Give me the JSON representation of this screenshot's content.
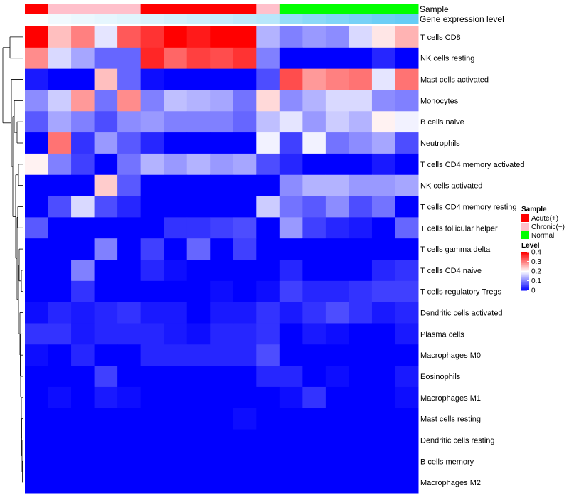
{
  "chart_data": {
    "type": "heatmap",
    "title": "",
    "annotation_tracks": [
      "Sample",
      "Gene expression level"
    ],
    "sample_groups": [
      "Acute",
      "Chronic",
      "Chronic",
      "Chronic",
      "Chronic",
      "Acute",
      "Acute",
      "Acute",
      "Acute",
      "Acute",
      "Chronic",
      "Normal",
      "Normal",
      "Normal",
      "Normal",
      "Normal",
      "Normal"
    ],
    "expression_level": [
      0.02,
      0.08,
      0.12,
      0.15,
      0.18,
      0.22,
      0.26,
      0.3,
      0.34,
      0.38,
      0.42,
      0.62,
      0.68,
      0.74,
      0.8,
      0.86,
      0.9
    ],
    "rows": [
      "T cells CD8",
      "NK cells resting",
      "Mast cells activated",
      "Monocytes",
      "B cells naive",
      "Neutrophils",
      "T cells CD4 memory activated",
      "NK cells activated",
      "T cells CD4 memory resting",
      "T cells follicular helper",
      "T cells gamma delta",
      "T cells CD4 naive",
      "T cells regulatory  Tregs",
      "Dendritic cells activated",
      "Plasma cells",
      "Macrophages M0",
      "Eosinophils",
      "Macrophages M1",
      "Mast cells resting",
      "Dendritic cells resting",
      "B cells memory",
      "Macrophages M2"
    ],
    "values": [
      [
        0.4,
        0.25,
        0.3,
        0.18,
        0.33,
        0.36,
        0.4,
        0.38,
        0.4,
        0.4,
        0.14,
        0.1,
        0.12,
        0.11,
        0.17,
        0.22,
        0.26
      ],
      [
        0.29,
        0.17,
        0.13,
        0.08,
        0.08,
        0.37,
        0.32,
        0.35,
        0.34,
        0.36,
        0.1,
        0.0,
        0.0,
        0.0,
        0.0,
        0.03,
        0.0
      ],
      [
        0.02,
        0.0,
        0.0,
        0.25,
        0.08,
        0.01,
        0.0,
        0.0,
        0.0,
        0.0,
        0.06,
        0.34,
        0.28,
        0.3,
        0.31,
        0.18,
        0.31
      ],
      [
        0.11,
        0.16,
        0.28,
        0.09,
        0.29,
        0.1,
        0.15,
        0.14,
        0.13,
        0.09,
        0.23,
        0.11,
        0.14,
        0.17,
        0.17,
        0.11,
        0.1
      ],
      [
        0.07,
        0.13,
        0.1,
        0.06,
        0.11,
        0.12,
        0.1,
        0.1,
        0.1,
        0.08,
        0.15,
        0.18,
        0.12,
        0.16,
        0.14,
        0.21,
        0.19
      ],
      [
        0.0,
        0.31,
        0.04,
        0.12,
        0.07,
        0.03,
        0.0,
        0.0,
        0.0,
        0.0,
        0.19,
        0.05,
        0.19,
        0.09,
        0.11,
        0.13,
        0.06
      ],
      [
        0.21,
        0.1,
        0.05,
        0.0,
        0.09,
        0.14,
        0.12,
        0.14,
        0.12,
        0.13,
        0.06,
        0.03,
        0.0,
        0.0,
        0.0,
        0.02,
        0.0
      ],
      [
        0.0,
        0.0,
        0.0,
        0.24,
        0.07,
        0.0,
        0.0,
        0.0,
        0.0,
        0.0,
        0.0,
        0.11,
        0.14,
        0.14,
        0.12,
        0.12,
        0.13
      ],
      [
        0.0,
        0.06,
        0.17,
        0.06,
        0.03,
        0.0,
        0.0,
        0.0,
        0.0,
        0.0,
        0.16,
        0.09,
        0.07,
        0.11,
        0.06,
        0.09,
        0.0
      ],
      [
        0.07,
        0.0,
        0.0,
        0.0,
        0.0,
        0.0,
        0.04,
        0.04,
        0.05,
        0.06,
        0.0,
        0.12,
        0.05,
        0.03,
        0.02,
        0.0,
        0.08
      ],
      [
        0.0,
        0.0,
        0.0,
        0.1,
        0.0,
        0.05,
        0.0,
        0.08,
        0.0,
        0.05,
        0.0,
        0.0,
        0.0,
        0.0,
        0.0,
        0.0,
        0.0
      ],
      [
        0.0,
        0.0,
        0.1,
        0.0,
        0.0,
        0.03,
        0.01,
        0.0,
        0.0,
        0.0,
        0.0,
        0.03,
        0.0,
        0.0,
        0.0,
        0.03,
        0.04
      ],
      [
        0.0,
        0.0,
        0.04,
        0.0,
        0.0,
        0.0,
        0.0,
        0.0,
        0.01,
        0.0,
        0.01,
        0.05,
        0.03,
        0.03,
        0.04,
        0.05,
        0.05
      ],
      [
        0.01,
        0.03,
        0.02,
        0.03,
        0.04,
        0.02,
        0.02,
        0.0,
        0.02,
        0.02,
        0.04,
        0.02,
        0.04,
        0.06,
        0.04,
        0.02,
        0.03
      ],
      [
        0.04,
        0.04,
        0.02,
        0.03,
        0.03,
        0.03,
        0.02,
        0.01,
        0.03,
        0.03,
        0.04,
        0.0,
        0.02,
        0.01,
        0.0,
        0.0,
        0.02
      ],
      [
        0.01,
        0.0,
        0.03,
        0.0,
        0.0,
        0.03,
        0.03,
        0.03,
        0.03,
        0.03,
        0.06,
        0.0,
        0.0,
        0.0,
        0.0,
        0.0,
        0.0
      ],
      [
        0.0,
        0.0,
        0.0,
        0.05,
        0.0,
        0.0,
        0.0,
        0.0,
        0.0,
        0.0,
        0.03,
        0.03,
        0.0,
        0.01,
        0.0,
        0.0,
        0.02
      ],
      [
        0.0,
        0.01,
        0.0,
        0.02,
        0.01,
        0.0,
        0.0,
        0.0,
        0.0,
        0.0,
        0.0,
        0.01,
        0.04,
        0.0,
        0.0,
        0.0,
        0.01
      ],
      [
        0.0,
        0.0,
        0.0,
        0.0,
        0.0,
        0.0,
        0.0,
        0.0,
        0.0,
        0.01,
        0.0,
        0.0,
        0.0,
        0.0,
        0.0,
        0.0,
        0.0
      ],
      [
        0.0,
        0.0,
        0.0,
        0.0,
        0.0,
        0.0,
        0.0,
        0.0,
        0.0,
        0.0,
        0.0,
        0.0,
        0.0,
        0.0,
        0.0,
        0.0,
        0.0
      ],
      [
        0.0,
        0.0,
        0.0,
        0.0,
        0.0,
        0.0,
        0.0,
        0.0,
        0.0,
        0.0,
        0.0,
        0.0,
        0.0,
        0.0,
        0.0,
        0.0,
        0.0
      ],
      [
        0.0,
        0.0,
        0.0,
        0.0,
        0.0,
        0.0,
        0.0,
        0.0,
        0.0,
        0.0,
        0.0,
        0.0,
        0.0,
        0.0,
        0.0,
        0.0,
        0.0
      ]
    ],
    "color_scale": {
      "min": 0,
      "max": 0.4,
      "low": "#0000ff",
      "mid": "#ffffff",
      "high": "#ff0000"
    },
    "legends": {
      "sample": {
        "title": "Sample",
        "entries": [
          {
            "label": "Acute(+)",
            "color": "#ff0000"
          },
          {
            "label": "Chronic(+)",
            "color": "#ffc0cb"
          },
          {
            "label": "Normal",
            "color": "#00ff00"
          }
        ]
      },
      "level": {
        "title": "Level",
        "ticks": [
          {
            "label": "0.4",
            "value": 0.4
          },
          {
            "label": "0.3",
            "value": 0.3
          },
          {
            "label": "0.2",
            "value": 0.2
          },
          {
            "label": "0.1",
            "value": 0.1
          },
          {
            "label": "0",
            "value": 0.0
          }
        ]
      }
    },
    "expression_colors": {
      "low": "#ffffff",
      "high": "#55c6f5"
    },
    "group_colors": {
      "Acute": "#ff0000",
      "Chronic": "#ffc0cb",
      "Normal": "#00ff00"
    },
    "row_dendrogram_order": [
      0,
      1,
      2,
      3,
      4,
      5,
      6,
      7,
      8,
      9,
      10,
      11,
      12,
      13,
      14,
      15,
      16,
      17,
      18,
      19,
      20,
      21
    ]
  }
}
